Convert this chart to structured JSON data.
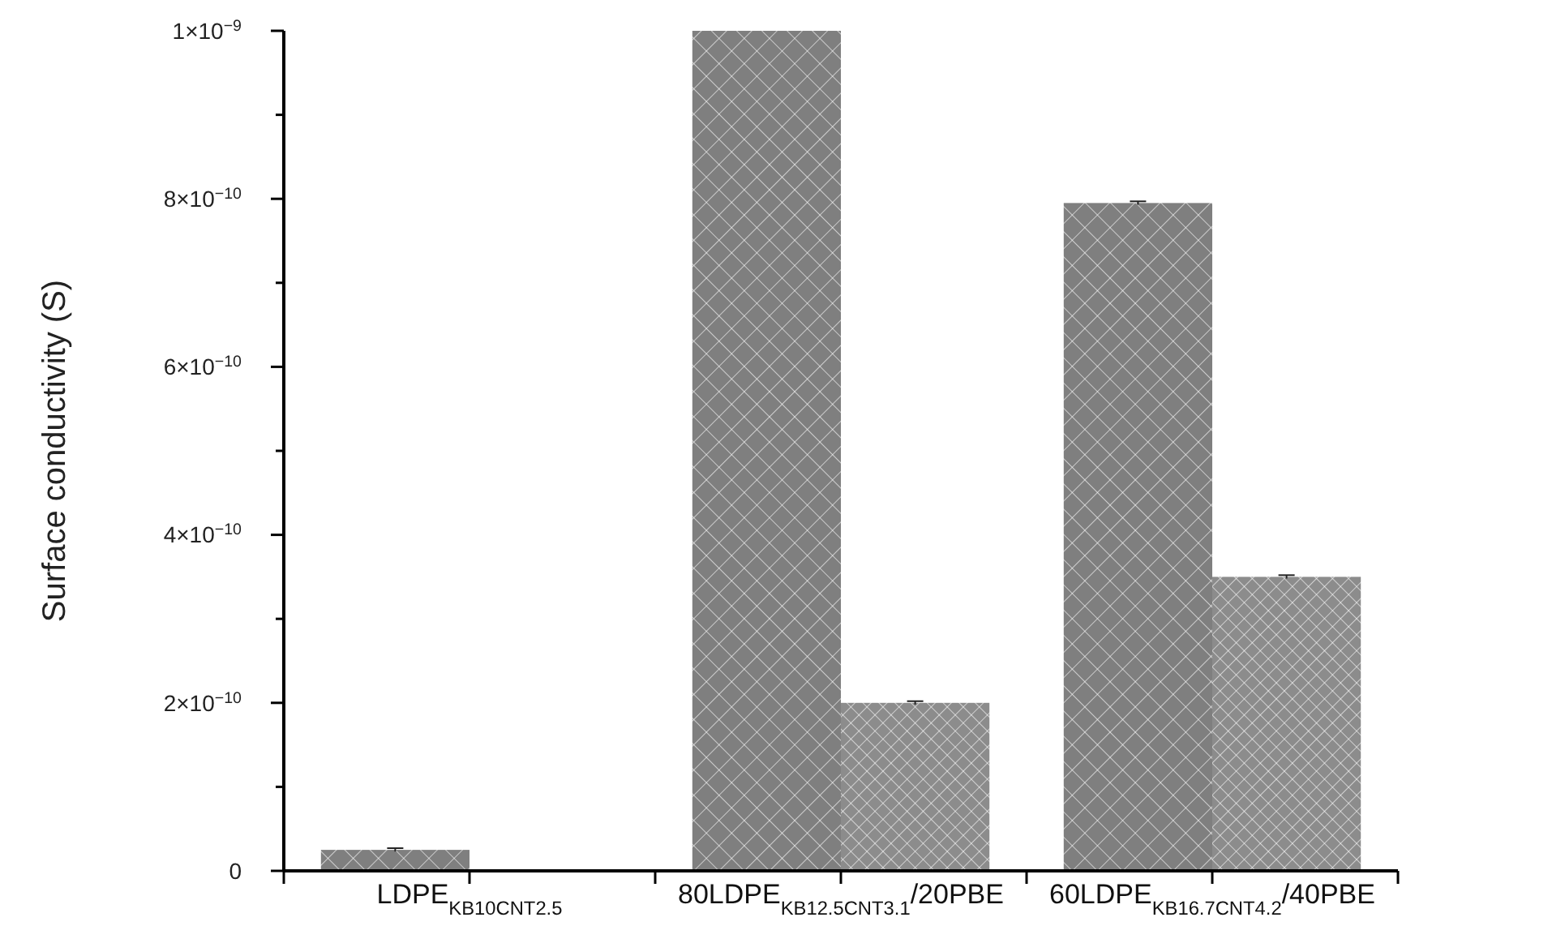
{
  "chart_data": {
    "type": "bar",
    "ylabel": "Surface conductivity (S)",
    "categories": [
      "LDPE$_{KB10CNT2.5}$",
      "80LDPE$_{KB12.5CNT3.1}$/20PBE",
      "60LDPE$_{KB16.7CNT4.2}$/40PBE"
    ],
    "series": [
      {
        "color": "#7f7f7f",
        "values": [
          2.5e-11,
          1e-09,
          7.95e-10
        ],
        "errors": [
          2e-12,
          null,
          2e-12
        ]
      },
      {
        "color": "#8c8c8c",
        "values": [
          null,
          2e-10,
          3.5e-10
        ],
        "errors": [
          null,
          2e-12,
          2e-12
        ]
      }
    ],
    "ylim": [
      0,
      1e-09
    ],
    "yticks": [
      {
        "value": 0,
        "label": "0"
      },
      {
        "value": 1e-10,
        "label": null
      },
      {
        "value": 2e-10,
        "label": "2×10$^{−10}$"
      },
      {
        "value": 3e-10,
        "label": null
      },
      {
        "value": 4e-10,
        "label": "4×10$^{−10}$"
      },
      {
        "value": 5e-10,
        "label": null
      },
      {
        "value": 6e-10,
        "label": "6×10$^{−10}$"
      },
      {
        "value": 7e-10,
        "label": null
      },
      {
        "value": 8e-10,
        "label": "8×10$^{−10}$"
      },
      {
        "value": 9e-10,
        "label": null
      },
      {
        "value": 1e-09,
        "label": "1×10$^{−9}$"
      }
    ],
    "grid": false
  }
}
